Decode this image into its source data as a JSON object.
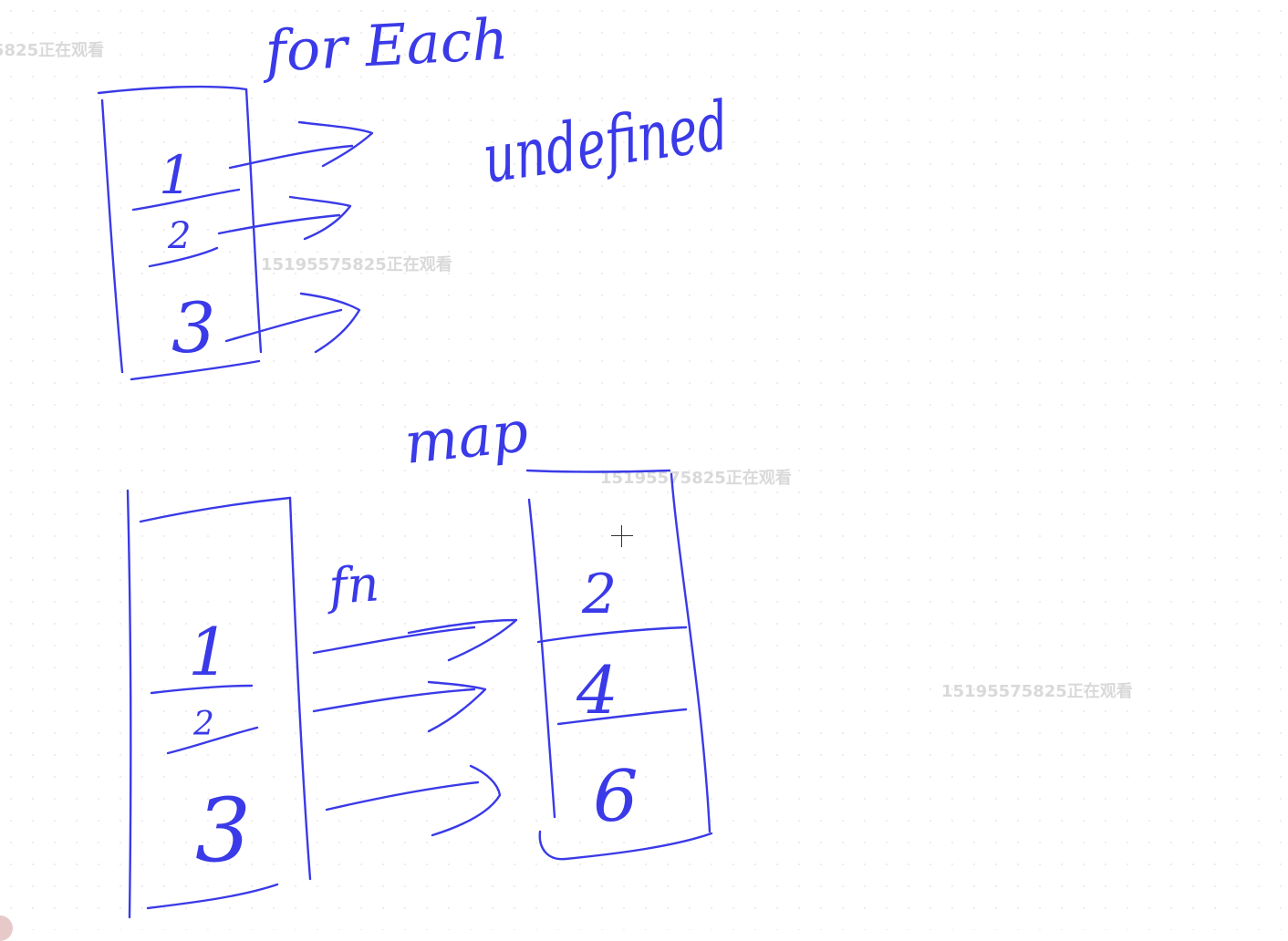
{
  "watermarks": [
    {
      "text": "5825正在观看"
    },
    {
      "text": "15195575825正在观看"
    },
    {
      "text": "15195575825正在观看"
    },
    {
      "text": "15195575825正在观看"
    }
  ],
  "annotations": {
    "forEach_title": "for Each",
    "undefined_label": "undefined",
    "map_title": "map",
    "fn_label": "fn"
  },
  "forEach_array": {
    "values": [
      "1",
      "2",
      "3"
    ]
  },
  "map_input_array": {
    "values": [
      "1",
      "2",
      "3"
    ]
  },
  "map_output_array": {
    "values": [
      "2",
      "4",
      "6"
    ]
  },
  "colors": {
    "ink": "#3a3ae8",
    "watermark": "#d9d9d9"
  },
  "icons": {
    "cursor": "crosshair-cursor-icon"
  }
}
